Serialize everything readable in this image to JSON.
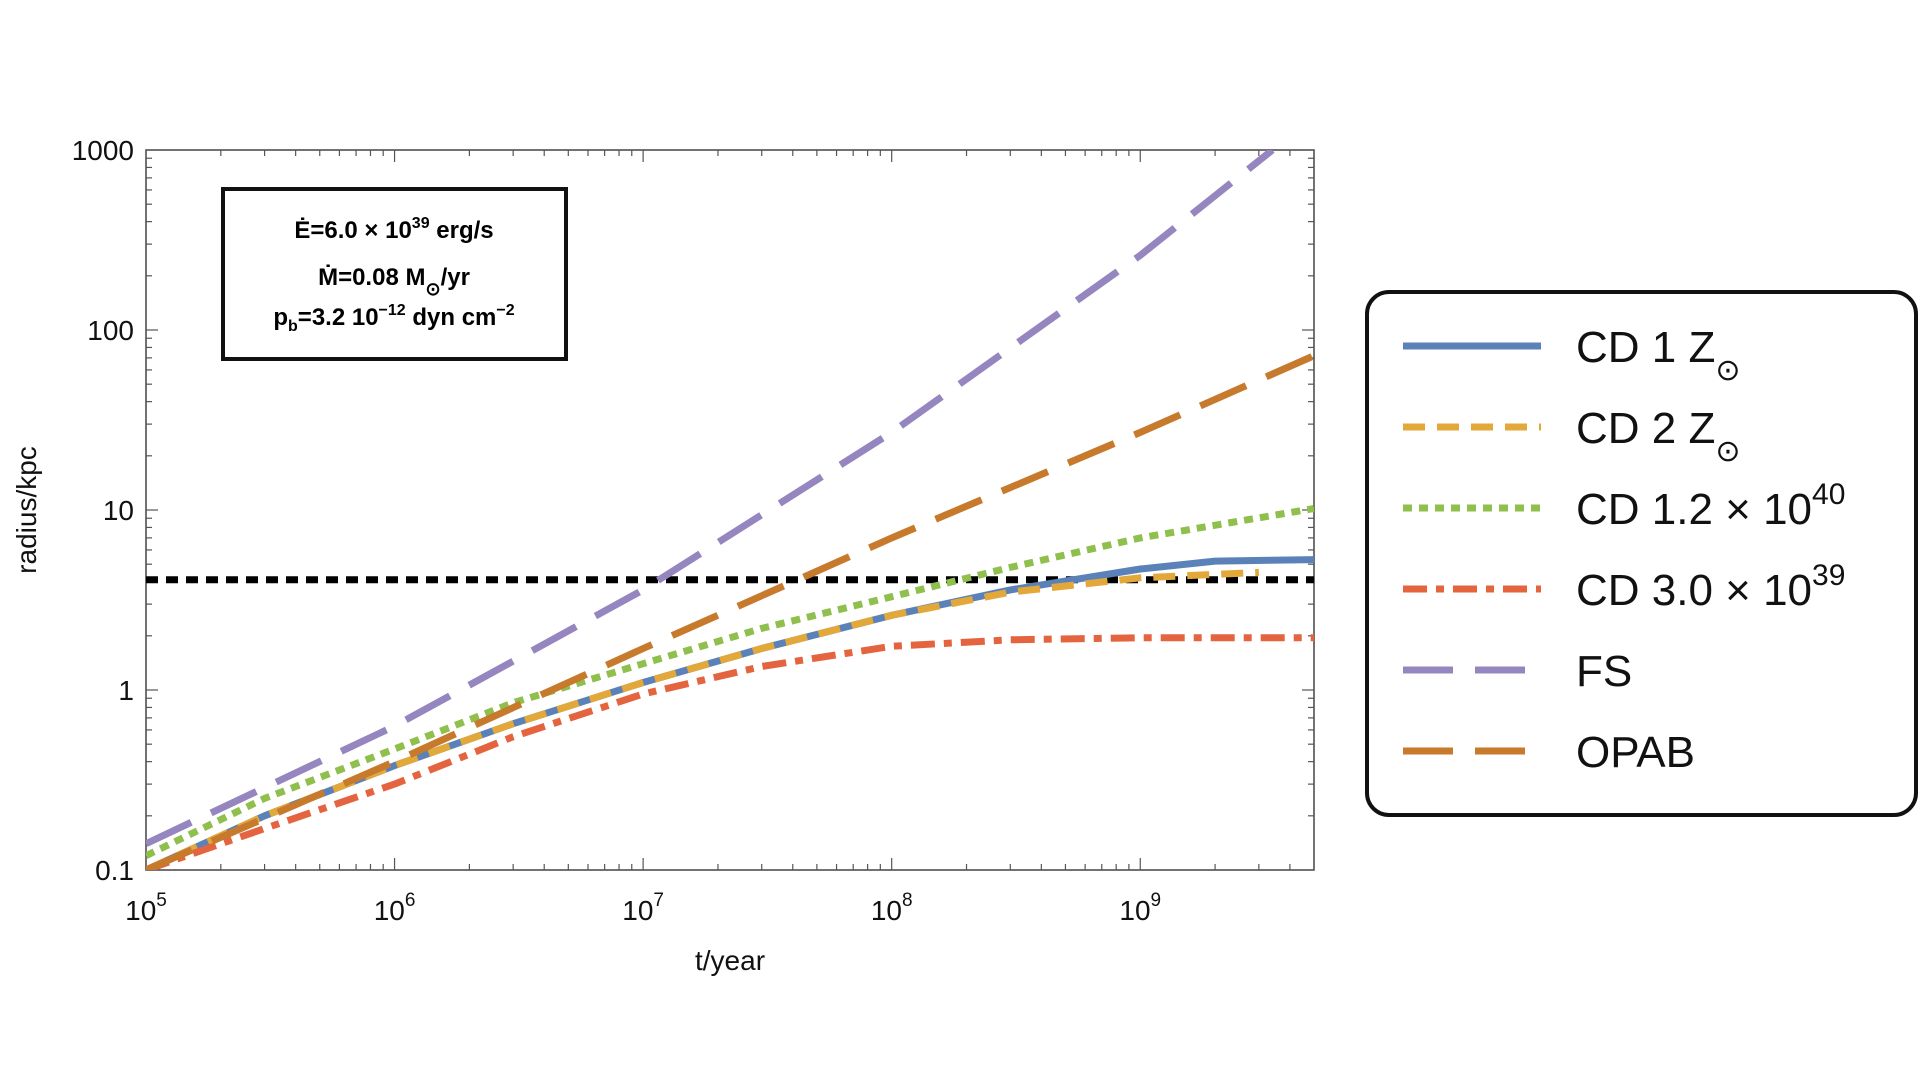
{
  "chart_data": {
    "type": "line",
    "xscale": "log",
    "yscale": "log",
    "xlabel": "t/year",
    "ylabel": "radius/kpc",
    "xlim": [
      100000,
      5000000000
    ],
    "ylim": [
      0.1,
      1000
    ],
    "x_ticks": [
      {
        "value": 100000,
        "base": "10",
        "exp": "5"
      },
      {
        "value": 1000000,
        "base": "10",
        "exp": "6"
      },
      {
        "value": 10000000,
        "base": "10",
        "exp": "7"
      },
      {
        "value": 100000000,
        "base": "10",
        "exp": "8"
      },
      {
        "value": 1000000000,
        "base": "10",
        "exp": "9"
      }
    ],
    "y_ticks": [
      {
        "value": 0.1,
        "label": "0.1"
      },
      {
        "value": 1,
        "label": "1"
      },
      {
        "value": 10,
        "label": "10"
      },
      {
        "value": 100,
        "label": "100"
      },
      {
        "value": 1000,
        "label": "1000"
      }
    ],
    "reference_line": {
      "y": 4.1,
      "color": "#000000",
      "style": "dashed"
    },
    "annotation": {
      "line1": {
        "a": "Ė=6.0 × 10",
        "sup": "39",
        "b": " erg/s"
      },
      "line2": {
        "a": "Ṁ=0.08 M",
        "sub": "⊙",
        "b": "/yr"
      },
      "line3": {
        "a": "p",
        "sub": "b",
        "b": "=3.2 10",
        "sup": "−12",
        "c": " dyn cm",
        "sup2": "−2"
      }
    },
    "series": [
      {
        "name": "CD 1 Z⊙",
        "legend": {
          "a": "CD 1 Z",
          "sub": "⊙"
        },
        "color": "#5b82b8",
        "style": "solid",
        "x": [
          100000,
          300000,
          1000000,
          3000000,
          10000000,
          30000000,
          100000000,
          300000000,
          1000000000,
          2000000000,
          5000000000
        ],
        "y": [
          0.1,
          0.2,
          0.38,
          0.65,
          1.1,
          1.7,
          2.6,
          3.6,
          4.7,
          5.2,
          5.3
        ]
      },
      {
        "name": "CD 2 Z⊙",
        "legend": {
          "a": "CD 2 Z",
          "sub": "⊙"
        },
        "color": "#e3a83a",
        "style": "dashed",
        "x": [
          100000,
          300000,
          1000000,
          3000000,
          10000000,
          30000000,
          100000000,
          300000000,
          1000000000,
          3000000000
        ],
        "y": [
          0.1,
          0.2,
          0.38,
          0.65,
          1.1,
          1.7,
          2.6,
          3.5,
          4.2,
          4.5
        ]
      },
      {
        "name": "CD 1.2 × 10^40",
        "legend": {
          "a": "CD 1.2 × 10",
          "sup": "40"
        },
        "color": "#8fbf4c",
        "style": "dotted",
        "x": [
          100000,
          300000,
          1000000,
          3000000,
          10000000,
          30000000,
          100000000,
          300000000,
          1000000000,
          5000000000
        ],
        "y": [
          0.12,
          0.25,
          0.47,
          0.85,
          1.4,
          2.2,
          3.3,
          4.8,
          7.0,
          10.2
        ]
      },
      {
        "name": "CD 3.0 × 10^39",
        "legend": {
          "a": "CD 3.0 × 10",
          "sup": "39"
        },
        "color": "#e4643f",
        "style": "dashdot",
        "x": [
          100000,
          300000,
          1000000,
          3000000,
          10000000,
          30000000,
          100000000,
          300000000,
          1000000000,
          5000000000
        ],
        "y": [
          0.1,
          0.17,
          0.3,
          0.55,
          0.95,
          1.35,
          1.75,
          1.9,
          1.95,
          1.95
        ]
      },
      {
        "name": "FS",
        "legend": {
          "a": "FS"
        },
        "color": "#9686bf",
        "style": "longdash",
        "x": [
          100000,
          1000000,
          10000000,
          100000000,
          1000000000,
          3400000000
        ],
        "y": [
          0.14,
          0.63,
          3.6,
          27,
          260,
          1000
        ]
      },
      {
        "name": "OPAB",
        "legend": {
          "a": "OPAB"
        },
        "color": "#c77a2c",
        "style": "longdash",
        "x": [
          100000,
          1000000,
          10000000,
          100000000,
          1000000000,
          5000000000
        ],
        "y": [
          0.1,
          0.4,
          1.7,
          7.0,
          27,
          72
        ]
      }
    ]
  }
}
